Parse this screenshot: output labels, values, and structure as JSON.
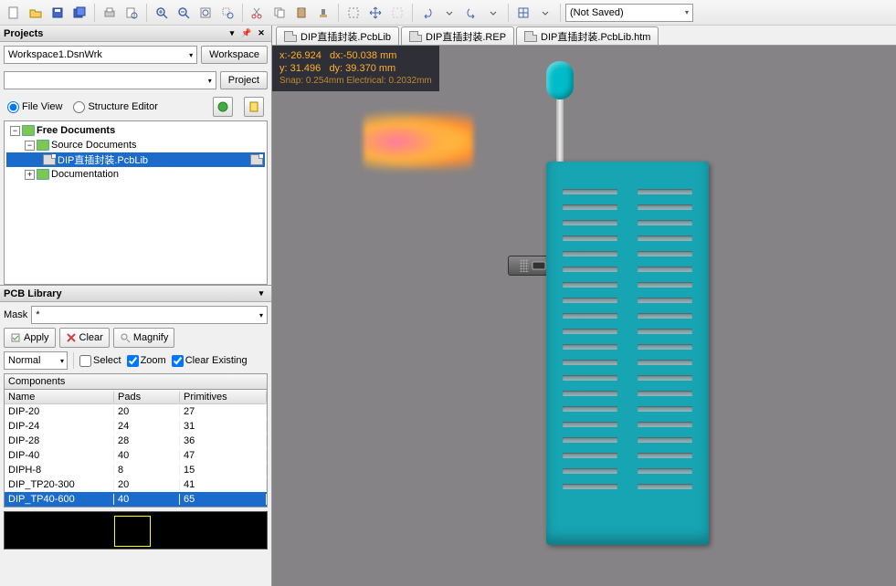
{
  "toolbar": {
    "combo": "(Not Saved)"
  },
  "projects": {
    "title": "Projects",
    "workspace": "Workspace1.DsnWrk",
    "workspace_btn": "Workspace",
    "project_btn": "Project",
    "file_view": "File View",
    "structure_editor": "Structure Editor",
    "tree": {
      "root": "Free Documents",
      "source": "Source Documents",
      "file": "DIP直插封装.PcbLib",
      "docs": "Documentation"
    }
  },
  "pcblib": {
    "title": "PCB Library",
    "mask_label": "Mask",
    "mask_value": "*",
    "apply": "Apply",
    "clear": "Clear",
    "magnify": "Magnify",
    "mode": "Normal",
    "select": "Select",
    "zoom": "Zoom",
    "clear_existing": "Clear Existing",
    "components_label": "Components",
    "cols": {
      "name": "Name",
      "pads": "Pads",
      "prims": "Primitives"
    },
    "rows": [
      {
        "name": "DIP-20",
        "pads": "20",
        "prims": "27"
      },
      {
        "name": "DIP-24",
        "pads": "24",
        "prims": "31"
      },
      {
        "name": "DIP-28",
        "pads": "28",
        "prims": "36"
      },
      {
        "name": "DIP-40",
        "pads": "40",
        "prims": "47"
      },
      {
        "name": "DIPH-8",
        "pads": "8",
        "prims": "15"
      },
      {
        "name": "DIP_TP20-300",
        "pads": "20",
        "prims": "41"
      },
      {
        "name": "DIP_TP40-600",
        "pads": "40",
        "prims": "65"
      }
    ],
    "selected_index": 6
  },
  "tabs": [
    {
      "label": "DIP直插封装.PcbLib"
    },
    {
      "label": "DIP直插封装.REP"
    },
    {
      "label": "DIP直插封装.PcbLib.htm"
    }
  ],
  "coords": {
    "x": "x:-26.924",
    "dx": "dx:-50.038 mm",
    "y": "y: 31.496",
    "dy": "dy: 39.370 mm",
    "snap": "Snap: 0.254mm Electrical: 0.2032mm"
  },
  "viewport": {
    "bg": "#868386",
    "socket_color": "#17a5b3",
    "knob_color": "#00bcc8",
    "pin_rows": 20
  }
}
